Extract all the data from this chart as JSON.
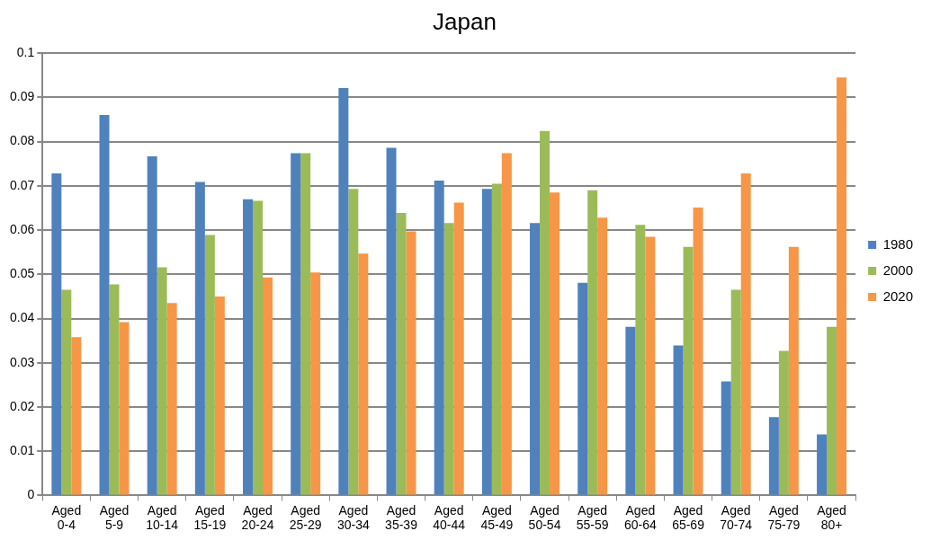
{
  "chart_data": {
    "type": "bar",
    "title": "Japan",
    "categories": [
      "Aged 0-4",
      "Aged 5-9",
      "Aged 10-14",
      "Aged 15-19",
      "Aged 20-24",
      "Aged 25-29",
      "Aged 30-34",
      "Aged 35-39",
      "Aged 40-44",
      "Aged 45-49",
      "Aged 50-54",
      "Aged 55-59",
      "Aged 60-64",
      "Aged 65-69",
      "Aged 70-74",
      "Aged 75-79",
      "Aged 80+"
    ],
    "series": [
      {
        "name": "1980",
        "color": "#4f81bd",
        "values": [
          0.0728,
          0.086,
          0.0767,
          0.0709,
          0.067,
          0.0774,
          0.0921,
          0.0786,
          0.0712,
          0.0693,
          0.0616,
          0.0481,
          0.0381,
          0.0339,
          0.0258,
          0.0177,
          0.0138
        ]
      },
      {
        "name": "2000",
        "color": "#9bbb59",
        "values": [
          0.0465,
          0.0477,
          0.0516,
          0.0589,
          0.0666,
          0.0774,
          0.0693,
          0.0639,
          0.0616,
          0.0705,
          0.0824,
          0.069,
          0.0612,
          0.0562,
          0.0465,
          0.0327,
          0.0381
        ]
      },
      {
        "name": "2020",
        "color": "#f79646",
        "values": [
          0.0358,
          0.0392,
          0.0435,
          0.045,
          0.0493,
          0.0504,
          0.0547,
          0.0597,
          0.0662,
          0.0774,
          0.0685,
          0.0628,
          0.0585,
          0.0651,
          0.0728,
          0.0562,
          0.0945
        ]
      }
    ],
    "ylim": [
      0,
      0.1
    ],
    "yticks": [
      0,
      0.01,
      0.02,
      0.03,
      0.04,
      0.05,
      0.06,
      0.07,
      0.08,
      0.09,
      0.1
    ],
    "grid": "y",
    "legend": "right"
  }
}
